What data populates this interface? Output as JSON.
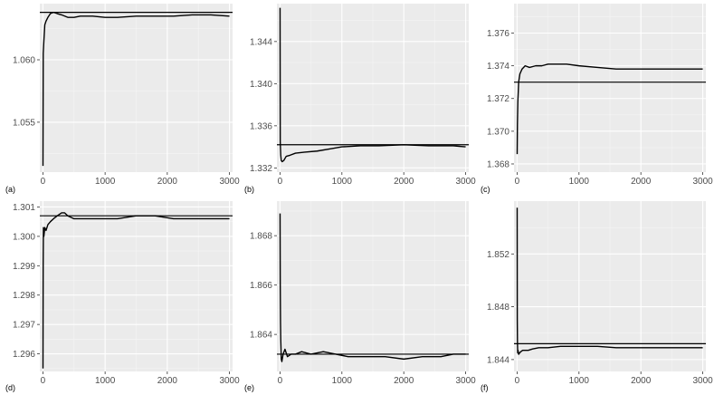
{
  "chart_data": [
    {
      "label": "(a)",
      "type": "line",
      "xlim": [
        -50,
        3050
      ],
      "ylim": [
        1.051,
        1.0645
      ],
      "xticks": [
        0,
        1000,
        2000,
        3000
      ],
      "xtick_labels": [
        "0",
        "1000",
        "2000",
        "3000"
      ],
      "yticks": [
        1.055,
        1.06
      ],
      "ytick_labels": [
        "1.055",
        "1.060"
      ],
      "reference_line": 1.0638,
      "series": [
        {
          "x": [
            1,
            5,
            15,
            30,
            50,
            80,
            120,
            170,
            230,
            300,
            400,
            500,
            600,
            800,
            1000,
            1200,
            1500,
            1800,
            2100,
            2400,
            2700,
            3000
          ],
          "y": [
            1.0515,
            1.0605,
            1.0615,
            1.0628,
            1.0631,
            1.0634,
            1.0637,
            1.0638,
            1.0637,
            1.0636,
            1.0634,
            1.0634,
            1.0635,
            1.0635,
            1.0634,
            1.0634,
            1.0635,
            1.0635,
            1.0635,
            1.0636,
            1.0636,
            1.0635
          ]
        }
      ]
    },
    {
      "label": "(b)",
      "type": "line",
      "xlim": [
        -50,
        3050
      ],
      "ylim": [
        1.3316,
        1.3476
      ],
      "xticks": [
        0,
        1000,
        2000,
        3000
      ],
      "xtick_labels": [
        "0",
        "1000",
        "2000",
        "3000"
      ],
      "yticks": [
        1.332,
        1.336,
        1.34,
        1.344
      ],
      "ytick_labels": [
        "1.332",
        "1.336",
        "1.340",
        "1.344"
      ],
      "reference_line": 1.3342,
      "series": [
        {
          "x": [
            1,
            4,
            8,
            12,
            20,
            35,
            60,
            100,
            160,
            250,
            400,
            600,
            800,
            1000,
            1300,
            1600,
            2000,
            2400,
            2800,
            3000
          ],
          "y": [
            1.3472,
            1.3345,
            1.3338,
            1.3332,
            1.3327,
            1.3326,
            1.3327,
            1.3331,
            1.3332,
            1.3334,
            1.3335,
            1.3336,
            1.3338,
            1.334,
            1.3341,
            1.3341,
            1.3342,
            1.3341,
            1.3341,
            1.334
          ]
        }
      ]
    },
    {
      "label": "(c)",
      "type": "line",
      "xlim": [
        -50,
        3050
      ],
      "ylim": [
        1.3675,
        1.3778
      ],
      "xticks": [
        0,
        1000,
        2000,
        3000
      ],
      "xtick_labels": [
        "0",
        "1000",
        "2000",
        "3000"
      ],
      "yticks": [
        1.368,
        1.37,
        1.372,
        1.374,
        1.376
      ],
      "ytick_labels": [
        "1.368",
        "1.370",
        "1.372",
        "1.374",
        "1.376"
      ],
      "reference_line": 1.373,
      "series": [
        {
          "x": [
            1,
            5,
            12,
            25,
            45,
            80,
            130,
            200,
            300,
            400,
            500,
            650,
            800,
            1000,
            1300,
            1600,
            2000,
            2400,
            2800,
            3000
          ],
          "y": [
            1.3686,
            1.3704,
            1.3718,
            1.373,
            1.3735,
            1.3738,
            1.374,
            1.3739,
            1.374,
            1.374,
            1.3741,
            1.3741,
            1.3741,
            1.374,
            1.3739,
            1.3738,
            1.3738,
            1.3738,
            1.3738,
            1.3738
          ]
        }
      ]
    },
    {
      "label": "(d)",
      "type": "line",
      "xlim": [
        -50,
        3050
      ],
      "ylim": [
        1.2954,
        1.3012
      ],
      "xticks": [
        0,
        1000,
        2000,
        3000
      ],
      "xtick_labels": [
        "0",
        "1000",
        "2000",
        "3000"
      ],
      "yticks": [
        1.296,
        1.297,
        1.298,
        1.299,
        1.3,
        1.301
      ],
      "ytick_labels": [
        "1.296",
        "1.297",
        "1.298",
        "1.299",
        "1.300",
        "1.301"
      ],
      "reference_line": 1.3007,
      "series": [
        {
          "x": [
            1,
            4,
            8,
            15,
            30,
            50,
            80,
            120,
            170,
            230,
            300,
            350,
            400,
            500,
            600,
            800,
            1000,
            1200,
            1500,
            1800,
            2100,
            2400,
            2700,
            3000
          ],
          "y": [
            1.2955,
            1.299,
            1.3003,
            1.3,
            1.3003,
            1.3002,
            1.3004,
            1.3005,
            1.3006,
            1.3007,
            1.3008,
            1.3008,
            1.3007,
            1.3006,
            1.3006,
            1.3006,
            1.3006,
            1.3006,
            1.3007,
            1.3007,
            1.3006,
            1.3006,
            1.3006,
            1.3006
          ]
        }
      ]
    },
    {
      "label": "(e)",
      "type": "line",
      "xlim": [
        -50,
        3050
      ],
      "ylim": [
        1.8625,
        1.8694
      ],
      "xticks": [
        0,
        1000,
        2000,
        3000
      ],
      "xtick_labels": [
        "0",
        "1000",
        "2000",
        "3000"
      ],
      "yticks": [
        1.864,
        1.866,
        1.868
      ],
      "ytick_labels": [
        "1.864",
        "1.866",
        "1.868"
      ],
      "reference_line": 1.8632,
      "series": [
        {
          "x": [
            1,
            4,
            8,
            12,
            20,
            30,
            50,
            80,
            120,
            180,
            250,
            350,
            500,
            700,
            900,
            1100,
            1400,
            1700,
            2000,
            2300,
            2600,
            2800,
            3000
          ],
          "y": [
            1.8689,
            1.866,
            1.8645,
            1.8638,
            1.863,
            1.8629,
            1.8632,
            1.8634,
            1.8631,
            1.8632,
            1.8632,
            1.8633,
            1.8632,
            1.8633,
            1.8632,
            1.8631,
            1.8631,
            1.8631,
            1.863,
            1.8631,
            1.8631,
            1.8632,
            1.8632
          ]
        }
      ]
    },
    {
      "label": "(f)",
      "type": "line",
      "xlim": [
        -50,
        3050
      ],
      "ylim": [
        1.8431,
        1.856
      ],
      "xticks": [
        0,
        1000,
        2000,
        3000
      ],
      "xtick_labels": [
        "0",
        "1000",
        "2000",
        "3000"
      ],
      "yticks": [
        1.844,
        1.848,
        1.852
      ],
      "ytick_labels": [
        "1.844",
        "1.848",
        "1.852"
      ],
      "reference_line": 1.8452,
      "series": [
        {
          "x": [
            1,
            3,
            6,
            10,
            15,
            25,
            40,
            60,
            90,
            130,
            180,
            250,
            350,
            500,
            700,
            1000,
            1300,
            1600,
            2000,
            2400,
            2800,
            3000
          ],
          "y": [
            1.8555,
            1.847,
            1.8452,
            1.8445,
            1.8447,
            1.8444,
            1.8445,
            1.8446,
            1.8447,
            1.8447,
            1.8447,
            1.8448,
            1.8449,
            1.8449,
            1.845,
            1.845,
            1.845,
            1.8449,
            1.8449,
            1.8449,
            1.8449,
            1.8449
          ]
        }
      ]
    }
  ],
  "colors": {
    "panel_background": "#ebebeb",
    "major_grid": "#ffffff",
    "minor_grid": "#f5f5f5",
    "line": "#000000",
    "tick_label": "#4d4d4d",
    "panel_label": "#000000"
  }
}
